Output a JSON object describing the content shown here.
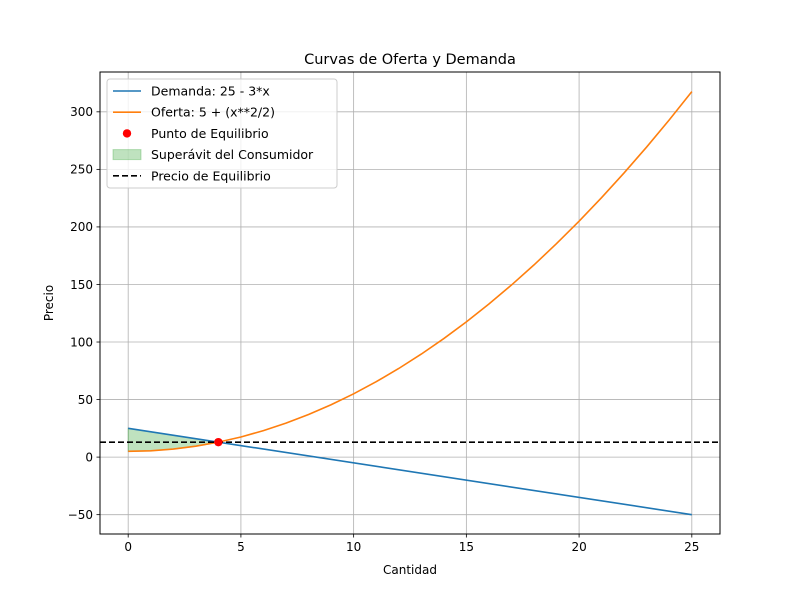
{
  "chart_data": {
    "type": "line",
    "title": "Curvas de Oferta y Demanda",
    "xlabel": "Cantidad",
    "ylabel": "Precio",
    "xlim": [
      -1.25,
      26.25
    ],
    "ylim": [
      -66.8,
      334.6
    ],
    "xticks": [
      0,
      5,
      10,
      15,
      20,
      25
    ],
    "xtick_labels": [
      "0",
      "5",
      "10",
      "15",
      "20",
      "25"
    ],
    "yticks": [
      -50,
      0,
      50,
      100,
      150,
      200,
      250,
      300
    ],
    "ytick_labels": [
      "−50",
      "0",
      "50",
      "100",
      "150",
      "200",
      "250",
      "300"
    ],
    "grid": true,
    "legend_position": "top-left",
    "series": [
      {
        "name": "Demanda: 25 - 3*x",
        "color": "#1f77b4",
        "kind": "line",
        "x": [
          0,
          25
        ],
        "y": [
          25,
          -50
        ]
      },
      {
        "name": "Oferta: 5 + (x**2/2)",
        "color": "#ff7f0e",
        "kind": "line",
        "x": [
          0,
          1,
          2,
          3,
          4,
          5,
          6,
          7,
          8,
          9,
          10,
          11,
          12,
          13,
          14,
          15,
          16,
          17,
          18,
          19,
          20,
          21,
          22,
          23,
          24,
          25
        ],
        "y": [
          5,
          5.5,
          7,
          9.5,
          13,
          17.5,
          23,
          29.5,
          37,
          45.5,
          55,
          65.5,
          77,
          89.5,
          103,
          117.5,
          133,
          149.5,
          167,
          185.5,
          205,
          225.5,
          247,
          269.5,
          293,
          317.5
        ]
      },
      {
        "name": "Punto de Equilibrio",
        "color": "#ff0000",
        "kind": "scatter",
        "x": [
          4
        ],
        "y": [
          13
        ]
      },
      {
        "name": "Superávit del Consumidor",
        "color": "#2ca02c",
        "kind": "fill",
        "x": [
          0,
          4
        ],
        "y_upper": [
          25,
          13
        ],
        "y_lower": [
          5,
          13
        ]
      },
      {
        "name": "Precio de Equilibrio",
        "color": "#000000",
        "kind": "hline",
        "y": 13
      }
    ]
  }
}
